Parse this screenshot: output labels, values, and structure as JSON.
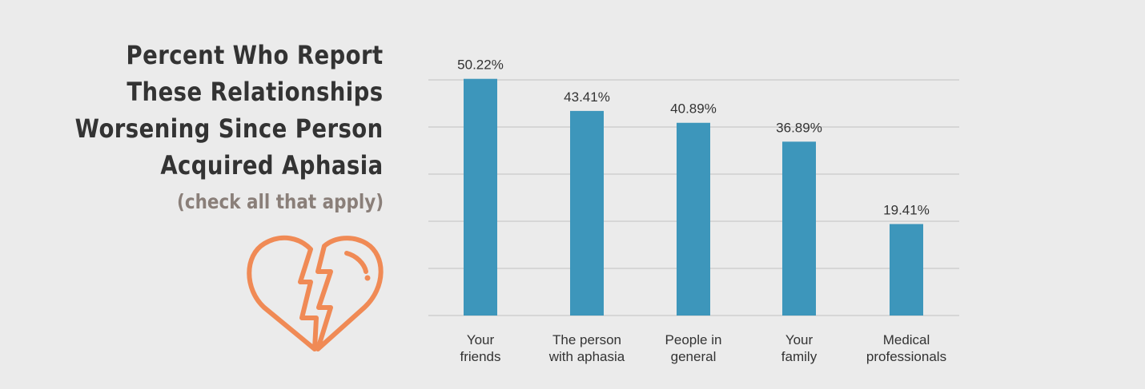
{
  "chart_data": {
    "type": "bar",
    "title": "Percent Who Report These Relationships Worsening Since Person Acquired Aphasia",
    "title_lines": [
      "Percent Who Report",
      "These Relationships",
      "Worsening Since Person",
      "Acquired Aphasia"
    ],
    "subtitle": "(check all that apply)",
    "categories": [
      [
        "Your",
        "friends"
      ],
      [
        "The person",
        "with aphasia"
      ],
      [
        "People in",
        "general"
      ],
      [
        "Your",
        "family"
      ],
      [
        "Medical",
        "professionals"
      ]
    ],
    "values": [
      50.22,
      43.41,
      40.89,
      36.89,
      19.41
    ],
    "data_labels": [
      "50.22%",
      "43.41%",
      "40.89%",
      "36.89%",
      "19.41%"
    ],
    "xlabel": "",
    "ylabel": "",
    "ylim": [
      0,
      50
    ],
    "grid": true,
    "gridlines": [
      0,
      10,
      20,
      30,
      40,
      50
    ],
    "colors": {
      "bar": "#3d96bb",
      "grid": "#d6d6d6",
      "icon": "#f08a55"
    },
    "icon": "broken-heart-icon"
  }
}
